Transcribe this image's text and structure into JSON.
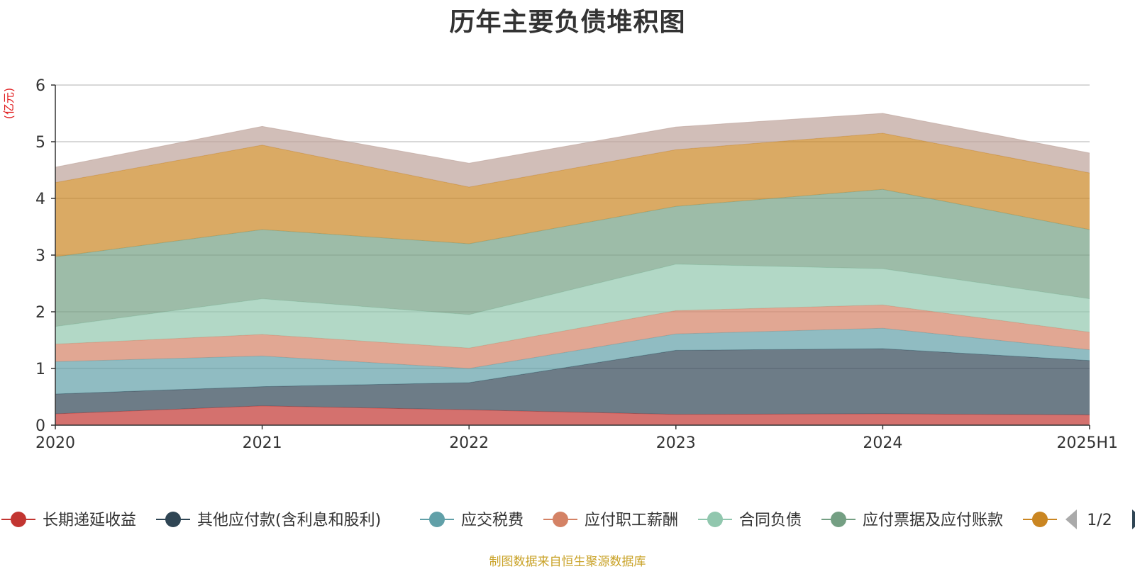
{
  "chart_data": {
    "type": "area",
    "title": "历年主要负债堆积图",
    "unit_label": "(亿元)",
    "categories": [
      "2020",
      "2021",
      "2022",
      "2023",
      "2024",
      "2025H1"
    ],
    "yticks": [
      "0",
      "1",
      "2",
      "3",
      "4",
      "5",
      "6"
    ],
    "ylim": [
      0,
      6
    ],
    "grid": true,
    "stacked": true,
    "series": [
      {
        "name": "长期递延收益",
        "color": "#c23531",
        "values": [
          0.2,
          0.34,
          0.27,
          0.19,
          0.2,
          0.18
        ]
      },
      {
        "name": "其他应付款(含利息和股利)",
        "color": "#2f4554",
        "values": [
          0.35,
          0.34,
          0.48,
          1.13,
          1.15,
          0.96
        ]
      },
      {
        "name": "应交税费",
        "color": "#61a0a8",
        "values": [
          0.57,
          0.54,
          0.25,
          0.29,
          0.36,
          0.19
        ]
      },
      {
        "name": "应付职工薪酬",
        "color": "#d48265",
        "values": [
          0.31,
          0.38,
          0.36,
          0.41,
          0.41,
          0.31
        ]
      },
      {
        "name": "合同负债",
        "color": "#91c7ae",
        "values": [
          0.31,
          0.63,
          0.59,
          0.82,
          0.64,
          0.59
        ]
      },
      {
        "name": "应付票据及应付账款",
        "color": "#749f83",
        "values": [
          1.23,
          1.22,
          1.25,
          1.02,
          1.4,
          1.22
        ]
      },
      {
        "name": "",
        "color": "#ca8622",
        "values": [
          1.31,
          1.49,
          1.0,
          1.0,
          0.99,
          1.0
        ]
      },
      {
        "name": "",
        "color": "#bda29a",
        "values": [
          0.27,
          0.33,
          0.42,
          0.4,
          0.35,
          0.35
        ]
      }
    ],
    "legend": {
      "position": "bottom",
      "visible_count": 7,
      "page": "1/2"
    }
  },
  "footer": {
    "source": "制图数据来自恒生聚源数据库"
  }
}
